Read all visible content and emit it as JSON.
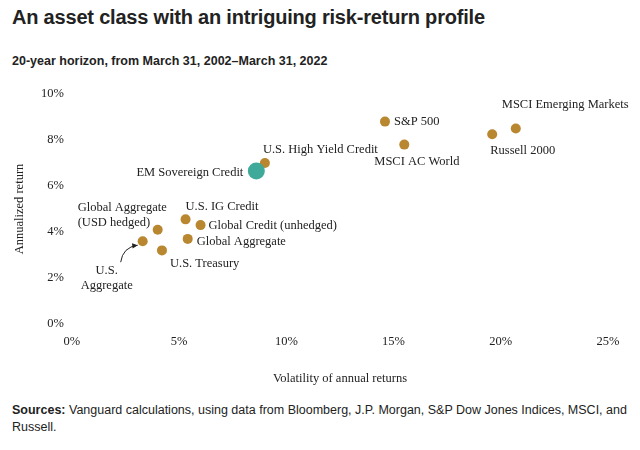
{
  "chart_data": {
    "type": "scatter",
    "title": "An asset class with an intriguing risk-return profile",
    "subtitle": "20-year horizon, from March 31, 2002–March 31, 2022",
    "x_label": "Volatility of annual returns",
    "y_label": "Annualized return",
    "source_label": "Sources:",
    "source": "Vanguard calculations, using data from Bloomberg, J.P. Morgan, S&P Dow Jones Indices, MSCI, and Russell.",
    "point_labels": [
      "S&P 500",
      "MSCI Emerging Markets",
      "Russell 2000",
      "MSCI AC World",
      "U.S. High Yield Credit",
      "EM Sovereign Credit",
      "U.S. IG Credit",
      "Global Credit (unhedged)",
      "Global Aggregate",
      "U.S. Treasury",
      "Global Aggregate\n(USD hedged)",
      "U.S.\nAggregate"
    ],
    "x": [
      14.6,
      20.7,
      19.6,
      15.5,
      9.0,
      8.6,
      5.3,
      6.0,
      5.4,
      4.2,
      4.0,
      3.3
    ],
    "values": [
      8.8,
      8.5,
      8.25,
      7.8,
      7.0,
      6.65,
      4.55,
      4.3,
      3.7,
      3.2,
      4.1,
      3.6
    ],
    "colors": [
      "#b8872f",
      "#b8872f",
      "#b8872f",
      "#b8872f",
      "#b8872f",
      "#3fa99a",
      "#b8872f",
      "#b8872f",
      "#b8872f",
      "#b8872f",
      "#b8872f",
      "#b8872f"
    ],
    "xlim": [
      0,
      25
    ],
    "xticks": [
      {
        "value": 0,
        "label": "0%"
      },
      {
        "value": 5,
        "label": "5%"
      },
      {
        "value": 10,
        "label": "10%"
      },
      {
        "value": 15,
        "label": "15%"
      },
      {
        "value": 20,
        "label": "20%"
      },
      {
        "value": 25,
        "label": "25%"
      }
    ],
    "ylim": [
      0,
      10
    ],
    "yticks": [
      {
        "value": 0,
        "label": "0%"
      },
      {
        "value": 2,
        "label": "2%"
      },
      {
        "value": 4,
        "label": "4%"
      },
      {
        "value": 6,
        "label": "6%"
      },
      {
        "value": 8,
        "label": "8%"
      },
      {
        "value": 10,
        "label": "10%"
      }
    ],
    "grid": false,
    "legend": "none"
  }
}
